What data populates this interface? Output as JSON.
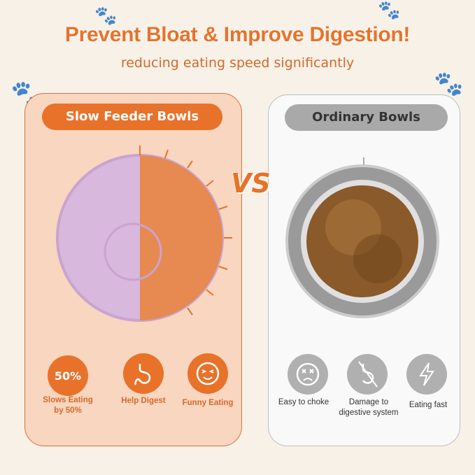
{
  "header": {
    "title": "Prevent Bloat & Improve Digestion!",
    "subtitle": "reducing eating speed significantly"
  },
  "vs_label": "VS",
  "left": {
    "title": "Slow Feeder Bowls",
    "features": [
      {
        "icon": "percent-badge",
        "badge": "50%",
        "label": "Slows Eating by 50%"
      },
      {
        "icon": "stomach-icon",
        "label": "Help Digest"
      },
      {
        "icon": "laughing-face-icon",
        "label": "Funny Eating"
      }
    ]
  },
  "right": {
    "title": "Ordinary Bowls",
    "features": [
      {
        "icon": "dizzy-face-icon",
        "label": "Easy to choke"
      },
      {
        "icon": "crossed-stomach-icon",
        "label": "Damage to digestive system"
      },
      {
        "icon": "lightning-icon",
        "label": "Eating fast"
      }
    ]
  },
  "colors": {
    "accent": "#e8722a",
    "gray": "#a9a9a9",
    "lick_mat": "#d8b8dc",
    "food": "#8a5a2b"
  }
}
